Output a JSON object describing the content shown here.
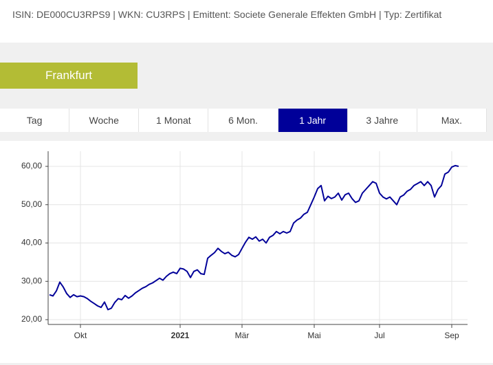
{
  "header": {
    "info": "ISIN: DE000CU3RPS9 | WKN: CU3RPS | Emittent: Societe Generale Effekten GmbH | Typ: Zertifikat"
  },
  "exchange": "Frankfurt",
  "tabs": {
    "items": [
      "Tag",
      "Woche",
      "1 Monat",
      "6 Mon.",
      "1 Jahr",
      "3 Jahre",
      "Max."
    ],
    "active": 4
  },
  "chart_data": {
    "type": "line",
    "color": "#000099",
    "grid": true,
    "values": [
      26.5,
      26.2,
      27.5,
      29.8,
      28.5,
      26.8,
      25.8,
      26.5,
      26.0,
      26.2,
      26.0,
      25.5,
      24.8,
      24.2,
      23.6,
      23.2,
      24.6,
      22.6,
      23.0,
      24.5,
      25.5,
      25.2,
      26.3,
      25.6,
      26.2,
      27.0,
      27.6,
      28.2,
      28.6,
      29.2,
      29.6,
      30.2,
      30.8,
      30.3,
      31.3,
      32.0,
      32.4,
      32.0,
      33.4,
      33.2,
      32.6,
      31.0,
      32.6,
      33.0,
      32.0,
      31.8,
      36.0,
      36.8,
      37.5,
      38.6,
      37.8,
      37.2,
      37.6,
      36.8,
      36.4,
      37.0,
      38.6,
      40.2,
      41.5,
      41.0,
      41.6,
      40.5,
      41.0,
      40.0,
      41.5,
      42.0,
      43.0,
      42.4,
      43.0,
      42.6,
      43.0,
      45.2,
      46.0,
      46.5,
      47.5,
      48.0,
      50.0,
      52.0,
      54.2,
      55.0,
      51.0,
      52.2,
      51.6,
      52.0,
      53.0,
      51.2,
      52.6,
      53.0,
      51.6,
      50.6,
      51.0,
      53.0,
      54.0,
      55.0,
      56.0,
      55.6,
      53.0,
      52.0,
      51.5,
      52.0,
      51.0,
      50.0,
      52.0,
      52.5,
      53.5,
      54.0,
      55.0,
      55.5,
      56.0,
      55.0,
      56.0,
      55.0,
      52.0,
      54.0,
      55.0,
      58.0,
      58.5,
      59.8,
      60.2,
      60.0
    ],
    "xlim": [
      -0.4,
      121.6
    ],
    "xticks": [
      {
        "value": 9,
        "label": "Okt"
      },
      {
        "value": 38,
        "label": "2021"
      },
      {
        "value": 56,
        "label": "Mär"
      },
      {
        "value": 77,
        "label": "Mai"
      },
      {
        "value": 96,
        "label": "Jul"
      },
      {
        "value": 117,
        "label": "Sep"
      }
    ],
    "ylim": [
      18.75,
      63.95
    ],
    "yticks": [
      {
        "value": 20,
        "label": "20,00"
      },
      {
        "value": 30,
        "label": "30,00"
      },
      {
        "value": 40,
        "label": "40,00"
      },
      {
        "value": 50,
        "label": "50,00"
      },
      {
        "value": 60,
        "label": "60,00"
      }
    ]
  }
}
